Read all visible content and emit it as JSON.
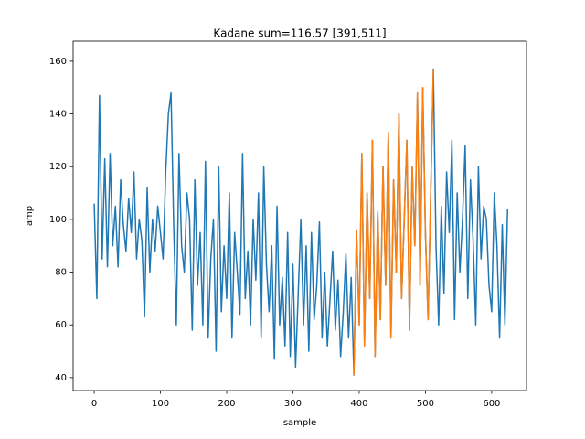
{
  "chart_data": {
    "type": "line",
    "title": "Kadane sum=116.57 [391,511]",
    "x_label": "sample",
    "y_label": "amp",
    "x": [
      0,
      4,
      8,
      12,
      16,
      20,
      24,
      28,
      32,
      36,
      40,
      44,
      48,
      52,
      56,
      60,
      64,
      68,
      72,
      76,
      80,
      84,
      88,
      92,
      96,
      100,
      104,
      108,
      112,
      116,
      120,
      124,
      128,
      132,
      136,
      140,
      144,
      148,
      152,
      156,
      160,
      164,
      168,
      172,
      176,
      180,
      184,
      188,
      192,
      196,
      200,
      204,
      208,
      212,
      216,
      220,
      224,
      228,
      232,
      236,
      240,
      244,
      248,
      252,
      256,
      260,
      264,
      268,
      272,
      276,
      280,
      284,
      288,
      292,
      296,
      300,
      304,
      308,
      312,
      316,
      320,
      324,
      328,
      332,
      336,
      340,
      344,
      348,
      352,
      356,
      360,
      364,
      368,
      372,
      376,
      380,
      384,
      388,
      392,
      396,
      400,
      404,
      408,
      412,
      416,
      420,
      424,
      428,
      432,
      436,
      440,
      444,
      448,
      452,
      456,
      460,
      464,
      468,
      472,
      476,
      480,
      484,
      488,
      492,
      496,
      500,
      504,
      508,
      512,
      516,
      520,
      524,
      528,
      532,
      536,
      540,
      544,
      548,
      552,
      556,
      560,
      564,
      568,
      572,
      576,
      580,
      584,
      588,
      592,
      596,
      600,
      604,
      608,
      612,
      616,
      620,
      624
    ],
    "series": [
      {
        "color": "#1f77b4",
        "values": [
          106,
          70,
          147,
          85,
          123,
          82,
          125,
          90,
          105,
          82,
          115,
          98,
          88,
          108,
          95,
          118,
          85,
          100,
          92,
          63,
          112,
          80,
          100,
          88,
          105,
          95,
          85,
          118,
          140,
          148,
          98,
          60,
          125,
          90,
          80,
          110,
          100,
          58,
          115,
          75,
          95,
          60,
          122,
          55,
          85,
          100,
          50,
          120,
          65,
          90,
          70,
          110,
          55,
          95,
          80,
          64,
          125,
          70,
          88,
          60,
          100,
          77,
          110,
          55,
          120,
          83,
          65,
          90,
          47,
          105,
          60,
          78,
          52,
          95,
          48,
          83,
          44,
          72,
          100,
          60,
          90,
          50,
          95,
          62,
          75,
          99,
          55,
          80,
          52,
          70,
          88,
          58,
          77,
          48,
          65,
          87,
          55,
          78,
          41,
          96,
          60,
          125,
          52,
          110,
          70,
          130,
          48,
          103,
          62,
          120,
          75,
          133,
          55,
          115,
          80,
          140,
          70,
          100,
          130,
          58,
          120,
          90,
          148,
          75,
          150,
          95,
          62,
          110,
          157,
          90,
          60,
          105,
          72,
          118,
          95,
          130,
          62,
          110,
          80,
          100,
          128,
          70,
          115,
          92,
          60,
          120,
          85,
          105,
          100,
          75,
          65,
          110,
          90,
          55,
          98,
          60,
          104
        ]
      },
      {
        "color": "#ff7f0e",
        "x": [
          392,
          396,
          400,
          404,
          408,
          412,
          416,
          420,
          424,
          428,
          432,
          436,
          440,
          444,
          448,
          452,
          456,
          460,
          464,
          468,
          472,
          476,
          480,
          484,
          488,
          492,
          496,
          500,
          504,
          508,
          512
        ],
        "values": [
          41,
          96,
          60,
          125,
          52,
          110,
          70,
          130,
          48,
          103,
          62,
          120,
          75,
          133,
          55,
          115,
          80,
          140,
          70,
          100,
          130,
          58,
          120,
          90,
          148,
          75,
          150,
          95,
          62,
          110,
          157
        ]
      }
    ],
    "xlim": [
      -31.8,
      652.6
    ],
    "ylim": [
      35.1,
      167.6
    ],
    "xticks": [
      0,
      100,
      200,
      300,
      400,
      500,
      600
    ],
    "yticks": [
      40,
      60,
      80,
      100,
      120,
      140,
      160
    ]
  }
}
